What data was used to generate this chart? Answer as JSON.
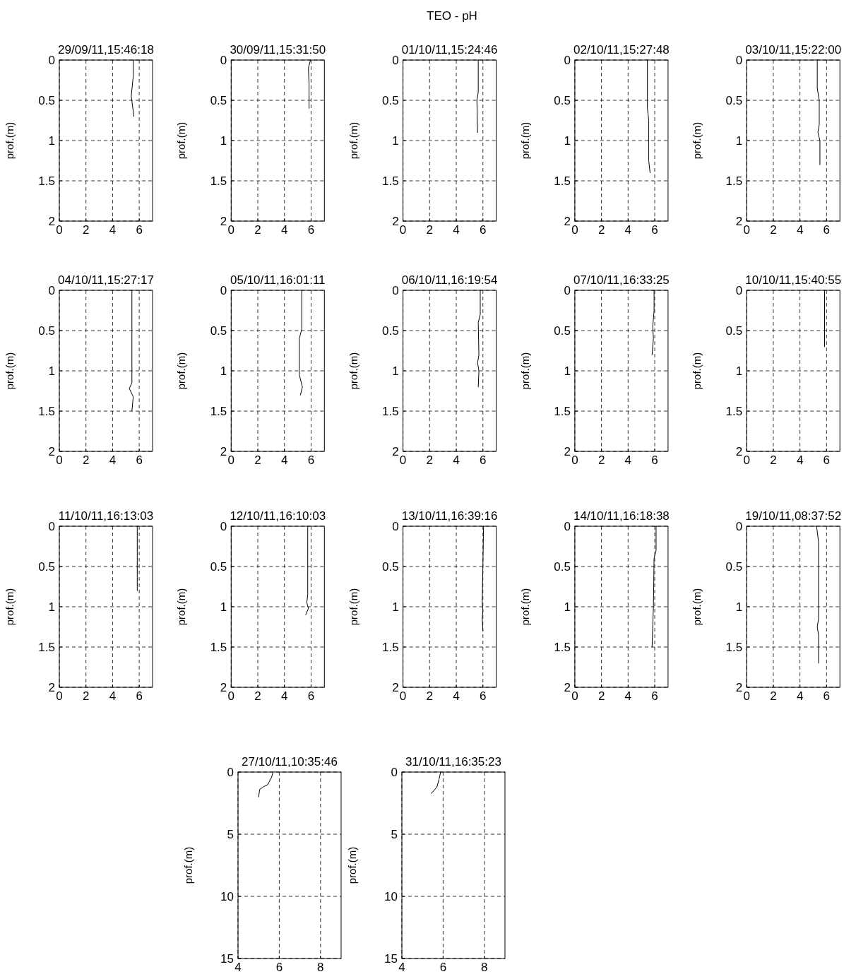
{
  "chart_data": [
    {
      "type": "line",
      "title": "29/09/11,15:46:18",
      "ylabel": "prof.(m)",
      "annotations": [
        "TEO - pH"
      ],
      "xlim": [
        0,
        7
      ],
      "xticks": [
        0,
        2,
        4,
        6
      ],
      "ylim": [
        2,
        0
      ],
      "yticks": [
        0,
        0.5,
        1,
        1.5,
        2
      ],
      "grid": true,
      "marker": "none",
      "line_style": "solid",
      "series": [
        {
          "color": "#000000",
          "x": [
            5.55,
            5.55,
            5.4,
            5.6
          ],
          "values": [
            0,
            0.2,
            0.45,
            0.7
          ]
        }
      ]
    },
    {
      "type": "line",
      "title": "30/09/11,15:31:50",
      "ylabel": "prof.(m)",
      "xlim": [
        0,
        7
      ],
      "xticks": [
        0,
        2,
        4,
        6
      ],
      "ylim": [
        2,
        0
      ],
      "yticks": [
        0,
        0.5,
        1,
        1.5,
        2
      ],
      "grid": true,
      "marker": "none",
      "line_style": "solid",
      "series": [
        {
          "color": "#000000",
          "x": [
            5.95,
            5.8,
            5.85,
            5.85
          ],
          "values": [
            0,
            0.1,
            0.3,
            0.6
          ]
        }
      ]
    },
    {
      "type": "line",
      "title": "01/10/11,15:24:46",
      "ylabel": "prof.(m)",
      "xlim": [
        0,
        7
      ],
      "xticks": [
        0,
        2,
        4,
        6
      ],
      "ylim": [
        2,
        0
      ],
      "yticks": [
        0,
        0.5,
        1,
        1.5,
        2
      ],
      "grid": true,
      "marker": "none",
      "line_style": "solid",
      "series": [
        {
          "color": "#000000",
          "x": [
            5.65,
            5.65,
            5.55,
            5.6
          ],
          "values": [
            0,
            0.4,
            0.5,
            0.9
          ]
        }
      ]
    },
    {
      "type": "line",
      "title": "02/10/11,15:27:48",
      "ylabel": "prof.(m)",
      "xlim": [
        0,
        7
      ],
      "xticks": [
        0,
        2,
        4,
        6
      ],
      "ylim": [
        2,
        0
      ],
      "yticks": [
        0,
        0.5,
        1,
        1.5,
        2
      ],
      "grid": true,
      "marker": "none",
      "line_style": "solid",
      "series": [
        {
          "color": "#000000",
          "x": [
            5.45,
            5.45,
            5.55,
            5.55,
            5.65
          ],
          "values": [
            0,
            0.6,
            0.75,
            1.25,
            1.4
          ]
        }
      ]
    },
    {
      "type": "line",
      "title": "03/10/11,15:22:00",
      "ylabel": "prof.(m)",
      "xlim": [
        0,
        7
      ],
      "xticks": [
        0,
        2,
        4,
        6
      ],
      "ylim": [
        2,
        0
      ],
      "yticks": [
        0,
        0.5,
        1,
        1.5,
        2
      ],
      "grid": true,
      "marker": "none",
      "line_style": "solid",
      "series": [
        {
          "color": "#000000",
          "x": [
            5.3,
            5.3,
            5.45,
            5.45,
            5.35,
            5.5,
            5.5
          ],
          "values": [
            0,
            0.35,
            0.5,
            0.8,
            0.9,
            1.0,
            1.3
          ]
        }
      ]
    },
    {
      "type": "line",
      "title": "04/10/11,15:27:17",
      "ylabel": "prof.(m)",
      "xlim": [
        0,
        7
      ],
      "xticks": [
        0,
        2,
        4,
        6
      ],
      "ylim": [
        2,
        0
      ],
      "yticks": [
        0,
        0.5,
        1,
        1.5,
        2
      ],
      "grid": true,
      "marker": "none",
      "line_style": "solid",
      "series": [
        {
          "color": "#000000",
          "x": [
            5.45,
            5.45,
            5.25,
            5.55,
            5.45
          ],
          "values": [
            0,
            1.15,
            1.22,
            1.32,
            1.5
          ]
        }
      ]
    },
    {
      "type": "line",
      "title": "05/10/11,16:01:11",
      "ylabel": "prof.(m)",
      "xlim": [
        0,
        7
      ],
      "xticks": [
        0,
        2,
        4,
        6
      ],
      "ylim": [
        2,
        0
      ],
      "yticks": [
        0,
        0.5,
        1,
        1.5,
        2
      ],
      "grid": true,
      "marker": "none",
      "line_style": "solid",
      "series": [
        {
          "color": "#000000",
          "x": [
            5.3,
            5.3,
            5.12,
            5.12,
            5.35,
            5.2
          ],
          "values": [
            0,
            0.48,
            0.6,
            1.05,
            1.2,
            1.3
          ]
        }
      ]
    },
    {
      "type": "line",
      "title": "06/10/11,16:19:54",
      "ylabel": "prof.(m)",
      "xlim": [
        0,
        7
      ],
      "xticks": [
        0,
        2,
        4,
        6
      ],
      "ylim": [
        2,
        0
      ],
      "yticks": [
        0,
        0.5,
        1,
        1.5,
        2
      ],
      "grid": true,
      "marker": "none",
      "line_style": "solid",
      "series": [
        {
          "color": "#000000",
          "x": [
            5.8,
            5.8,
            5.65,
            5.7,
            5.6,
            5.7,
            5.65
          ],
          "values": [
            0,
            0.3,
            0.4,
            0.8,
            0.9,
            1.0,
            1.2
          ]
        }
      ]
    },
    {
      "type": "line",
      "title": "07/10/11,16:33:25",
      "ylabel": "prof.(m)",
      "xlim": [
        0,
        7
      ],
      "xticks": [
        0,
        2,
        4,
        6
      ],
      "ylim": [
        2,
        0
      ],
      "yticks": [
        0,
        0.5,
        1,
        1.5,
        2
      ],
      "grid": true,
      "marker": "none",
      "line_style": "solid",
      "series": [
        {
          "color": "#000000",
          "x": [
            5.95,
            5.95,
            5.85,
            5.9,
            5.8
          ],
          "values": [
            0,
            0.25,
            0.45,
            0.6,
            0.8
          ]
        }
      ]
    },
    {
      "type": "line",
      "title": "10/10/11,15:40:55",
      "ylabel": "prof.(m)",
      "xlim": [
        0,
        7
      ],
      "xticks": [
        0,
        2,
        4,
        6
      ],
      "ylim": [
        2,
        0
      ],
      "yticks": [
        0,
        0.5,
        1,
        1.5,
        2
      ],
      "grid": true,
      "marker": "none",
      "line_style": "solid",
      "series": [
        {
          "color": "#000000",
          "x": [
            5.85,
            5.85
          ],
          "values": [
            0,
            0.7
          ]
        }
      ]
    },
    {
      "type": "line",
      "title": "11/10/11,16:13:03",
      "ylabel": "prof.(m)",
      "xlim": [
        0,
        7
      ],
      "xticks": [
        0,
        2,
        4,
        6
      ],
      "ylim": [
        2,
        0
      ],
      "yticks": [
        0,
        0.5,
        1,
        1.5,
        2
      ],
      "grid": true,
      "marker": "none",
      "line_style": "solid",
      "series": [
        {
          "color": "#000000",
          "x": [
            5.85,
            5.85
          ],
          "values": [
            0,
            0.8
          ]
        }
      ]
    },
    {
      "type": "line",
      "title": "12/10/11,16:10:03",
      "ylabel": "prof.(m)",
      "xlim": [
        0,
        7
      ],
      "xticks": [
        0,
        2,
        4,
        6
      ],
      "ylim": [
        2,
        0
      ],
      "yticks": [
        0,
        0.5,
        1,
        1.5,
        2
      ],
      "grid": true,
      "marker": "none",
      "line_style": "solid",
      "series": [
        {
          "color": "#000000",
          "x": [
            5.75,
            5.75,
            5.68,
            5.8,
            5.6
          ],
          "values": [
            0,
            0.85,
            0.95,
            1.02,
            1.1
          ]
        }
      ]
    },
    {
      "type": "line",
      "title": "13/10/11,16:39:16",
      "ylabel": "prof.(m)",
      "xlim": [
        0,
        7
      ],
      "xticks": [
        0,
        2,
        4,
        6
      ],
      "ylim": [
        2,
        0
      ],
      "yticks": [
        0,
        0.5,
        1,
        1.5,
        2
      ],
      "grid": true,
      "marker": "none",
      "line_style": "solid",
      "series": [
        {
          "color": "#000000",
          "x": [
            6.05,
            6.0,
            5.95,
            6.0,
            5.95,
            6.0
          ],
          "values": [
            0,
            0.5,
            0.95,
            1.05,
            1.15,
            1.3
          ]
        }
      ]
    },
    {
      "type": "line",
      "title": "14/10/11,16:18:38",
      "ylabel": "prof.(m)",
      "xlim": [
        0,
        7
      ],
      "xticks": [
        0,
        2,
        4,
        6
      ],
      "ylim": [
        2,
        0
      ],
      "yticks": [
        0,
        0.5,
        1,
        1.5,
        2
      ],
      "grid": true,
      "marker": "none",
      "line_style": "solid",
      "series": [
        {
          "color": "#000000",
          "x": [
            6.1,
            6.1,
            5.95,
            5.9,
            5.8
          ],
          "values": [
            0,
            0.3,
            0.4,
            1.0,
            1.5
          ]
        }
      ]
    },
    {
      "type": "line",
      "title": "19/10/11,08:37:52",
      "ylabel": "prof.(m)",
      "xlim": [
        0,
        7
      ],
      "xticks": [
        0,
        2,
        4,
        6
      ],
      "ylim": [
        2,
        0
      ],
      "yticks": [
        0,
        0.5,
        1,
        1.5,
        2
      ],
      "grid": true,
      "marker": "none",
      "line_style": "solid",
      "series": [
        {
          "color": "#000000",
          "x": [
            5.25,
            5.4,
            5.4,
            5.3,
            5.4,
            5.4
          ],
          "values": [
            0,
            0.2,
            1.15,
            1.25,
            1.35,
            1.7
          ]
        }
      ]
    },
    {
      "type": "line",
      "title": "27/10/11,10:35:46",
      "ylabel": "prof.(m)",
      "xlim": [
        4,
        9
      ],
      "xticks": [
        4,
        6,
        8
      ],
      "ylim": [
        15,
        0
      ],
      "yticks": [
        0,
        5,
        10,
        15
      ],
      "grid": true,
      "marker": "none",
      "line_style": "solid",
      "series": [
        {
          "color": "#000000",
          "x": [
            5.7,
            5.63,
            5.45,
            5.22,
            5.05,
            5.0
          ],
          "values": [
            0,
            0.4,
            1.0,
            1.2,
            1.4,
            2.0
          ]
        }
      ]
    },
    {
      "type": "line",
      "title": "31/10/11,16:35:23",
      "ylabel": "prof.(m)",
      "xlim": [
        4,
        9
      ],
      "xticks": [
        4,
        6,
        8
      ],
      "ylim": [
        15,
        0
      ],
      "yticks": [
        0,
        5,
        10,
        15
      ],
      "grid": true,
      "marker": "none",
      "line_style": "solid",
      "series": [
        {
          "color": "#000000",
          "x": [
            5.88,
            5.8,
            5.7,
            5.5,
            5.42
          ],
          "values": [
            0,
            0.6,
            1.2,
            1.6,
            1.7
          ]
        }
      ]
    }
  ]
}
